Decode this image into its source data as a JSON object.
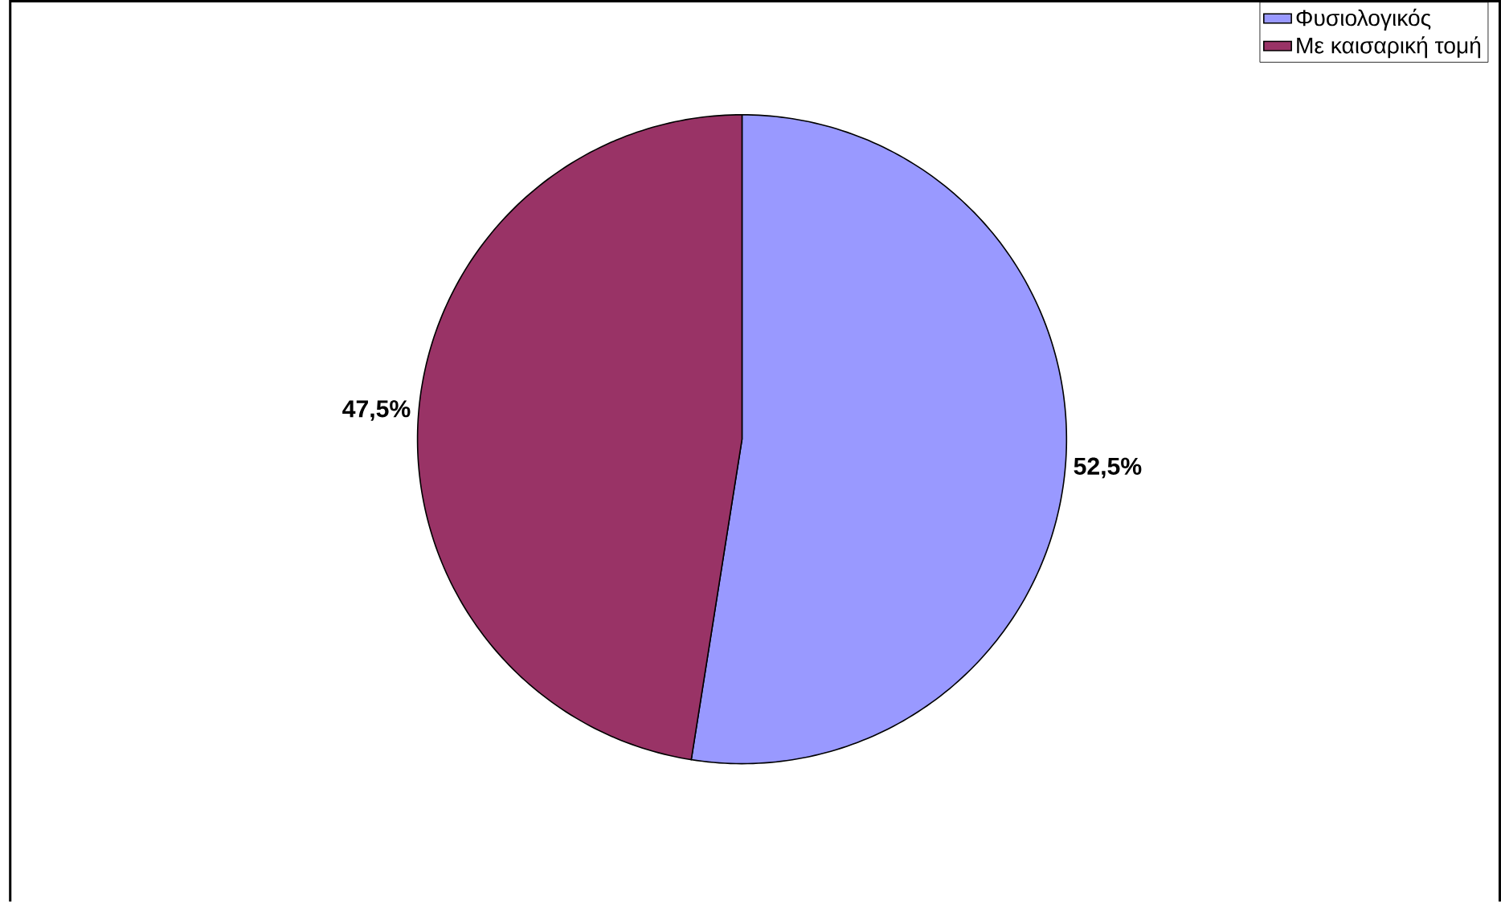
{
  "chart_data": {
    "type": "pie",
    "categories": [
      "Φυσιολογικός",
      "Με καισαρική τομή"
    ],
    "values": [
      52.5,
      47.5
    ],
    "colors": [
      "#9999ff",
      "#993366"
    ],
    "value_labels": [
      "52,5%",
      "47,5%"
    ],
    "legend": "top right"
  }
}
